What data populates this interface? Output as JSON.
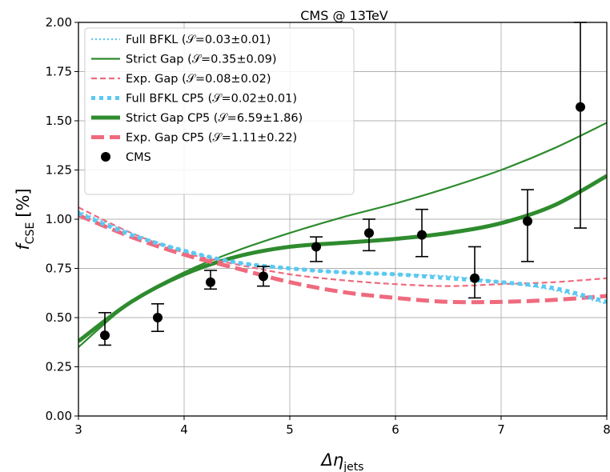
{
  "chart_data": {
    "type": "line",
    "title": "CMS @ 13TeV",
    "xlabel": "Δη",
    "xlabel_sub": "jets",
    "ylabel": "f",
    "ylabel_sub": "CSE",
    "ylabel_unit": "[%]",
    "xlim": [
      3,
      8
    ],
    "ylim": [
      0,
      2
    ],
    "xticks": [
      "3",
      "4",
      "5",
      "6",
      "7",
      "8"
    ],
    "yticks": [
      "0.00",
      "0.25",
      "0.50",
      "0.75",
      "1.00",
      "1.25",
      "1.50",
      "1.75",
      "2.00"
    ],
    "grid": true,
    "legend_position": "top-left",
    "series": [
      {
        "name": "Full BFKL",
        "label_value": "(𝒮=0.03±0.01)",
        "color": "#5bc8f0",
        "style": "dotted",
        "width": "thin",
        "x": [
          3.0,
          3.5,
          4.0,
          4.5,
          5.0,
          5.5,
          6.0,
          6.5,
          7.0,
          7.5,
          8.0
        ],
        "y": [
          1.04,
          0.93,
          0.84,
          0.78,
          0.75,
          0.73,
          0.72,
          0.71,
          0.68,
          0.64,
          0.57
        ]
      },
      {
        "name": "Strict Gap",
        "label_value": "(𝒮=0.35±0.09)",
        "color": "#2e8b2e",
        "style": "solid",
        "width": "thin",
        "x": [
          3.0,
          3.5,
          4.0,
          4.5,
          5.0,
          5.5,
          6.0,
          6.5,
          7.0,
          7.5,
          8.0
        ],
        "y": [
          0.35,
          0.58,
          0.73,
          0.84,
          0.93,
          1.01,
          1.08,
          1.16,
          1.25,
          1.36,
          1.49
        ]
      },
      {
        "name": "Exp. Gap",
        "label_value": "(𝒮=0.08±0.02)",
        "color": "#ef6a7e",
        "style": "dashed",
        "width": "thin",
        "x": [
          3.0,
          3.5,
          4.0,
          4.5,
          5.0,
          5.5,
          6.0,
          6.5,
          7.0,
          7.5,
          8.0
        ],
        "y": [
          1.06,
          0.93,
          0.83,
          0.77,
          0.72,
          0.69,
          0.67,
          0.66,
          0.67,
          0.68,
          0.7
        ]
      },
      {
        "name": "Full BFKL CP5",
        "label_value": "(𝒮=0.02±0.01)",
        "color": "#5bc8f0",
        "style": "dotted",
        "width": "thick",
        "x": [
          3.0,
          3.5,
          4.0,
          4.5,
          5.0,
          5.5,
          6.0,
          6.5,
          7.0,
          7.5,
          8.0
        ],
        "y": [
          1.03,
          0.92,
          0.84,
          0.78,
          0.75,
          0.73,
          0.72,
          0.7,
          0.68,
          0.65,
          0.58
        ]
      },
      {
        "name": "Strict Gap CP5",
        "label_value": "(𝒮=6.59±1.86)",
        "color": "#2e8b2e",
        "style": "solid",
        "width": "thick",
        "x": [
          3.0,
          3.5,
          4.0,
          4.5,
          5.0,
          5.5,
          6.0,
          6.5,
          7.0,
          7.5,
          8.0
        ],
        "y": [
          0.38,
          0.58,
          0.72,
          0.81,
          0.86,
          0.88,
          0.9,
          0.93,
          0.98,
          1.07,
          1.22
        ]
      },
      {
        "name": "Exp. Gap CP5",
        "label_value": "(𝒮=1.11±0.22)",
        "color": "#ef6a7e",
        "style": "dashed",
        "width": "thick",
        "x": [
          3.0,
          3.5,
          4.0,
          4.5,
          5.0,
          5.5,
          6.0,
          6.5,
          7.0,
          7.5,
          8.0
        ],
        "y": [
          1.02,
          0.91,
          0.82,
          0.75,
          0.68,
          0.63,
          0.6,
          0.58,
          0.58,
          0.59,
          0.61
        ]
      }
    ],
    "points": {
      "name": "CMS",
      "color": "#000000",
      "x": [
        3.25,
        3.75,
        4.25,
        4.75,
        5.25,
        5.75,
        6.25,
        6.75,
        7.25,
        7.75
      ],
      "y": [
        0.41,
        0.5,
        0.68,
        0.71,
        0.86,
        0.93,
        0.92,
        0.7,
        0.99,
        1.57
      ],
      "ylow": [
        0.36,
        0.43,
        0.645,
        0.66,
        0.785,
        0.84,
        0.81,
        0.6,
        0.785,
        0.955
      ],
      "yhigh": [
        0.525,
        0.57,
        0.74,
        0.76,
        0.91,
        1.0,
        1.05,
        0.86,
        1.15,
        2.0
      ]
    }
  }
}
